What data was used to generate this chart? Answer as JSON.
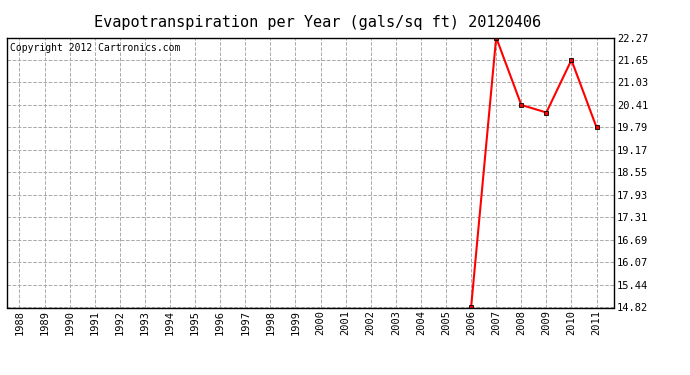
{
  "title": "Evapotranspiration per Year (gals/sq ft) 20120406",
  "copyright_text": "Copyright 2012 Cartronics.com",
  "x_years": [
    1988,
    1989,
    1990,
    1991,
    1992,
    1993,
    1994,
    1995,
    1996,
    1997,
    1998,
    1999,
    2000,
    2001,
    2002,
    2003,
    2004,
    2005,
    2006,
    2007,
    2008,
    2009,
    2010,
    2011
  ],
  "y_values": [
    null,
    null,
    null,
    null,
    null,
    null,
    null,
    null,
    null,
    null,
    null,
    null,
    null,
    null,
    null,
    null,
    null,
    null,
    14.82,
    22.27,
    20.41,
    20.2,
    21.65,
    19.79
  ],
  "yticks": [
    14.82,
    15.44,
    16.07,
    16.69,
    17.31,
    17.93,
    18.55,
    19.17,
    19.79,
    20.41,
    21.03,
    21.65,
    22.27
  ],
  "ymin": 14.82,
  "ymax": 22.27,
  "line_color": "#ff0000",
  "marker": "s",
  "marker_size": 3,
  "background_color": "#ffffff",
  "plot_bg_color": "#ffffff",
  "grid_color": "#aaaaaa",
  "title_fontsize": 11,
  "copyright_fontsize": 7,
  "tick_fontsize": 7.5
}
